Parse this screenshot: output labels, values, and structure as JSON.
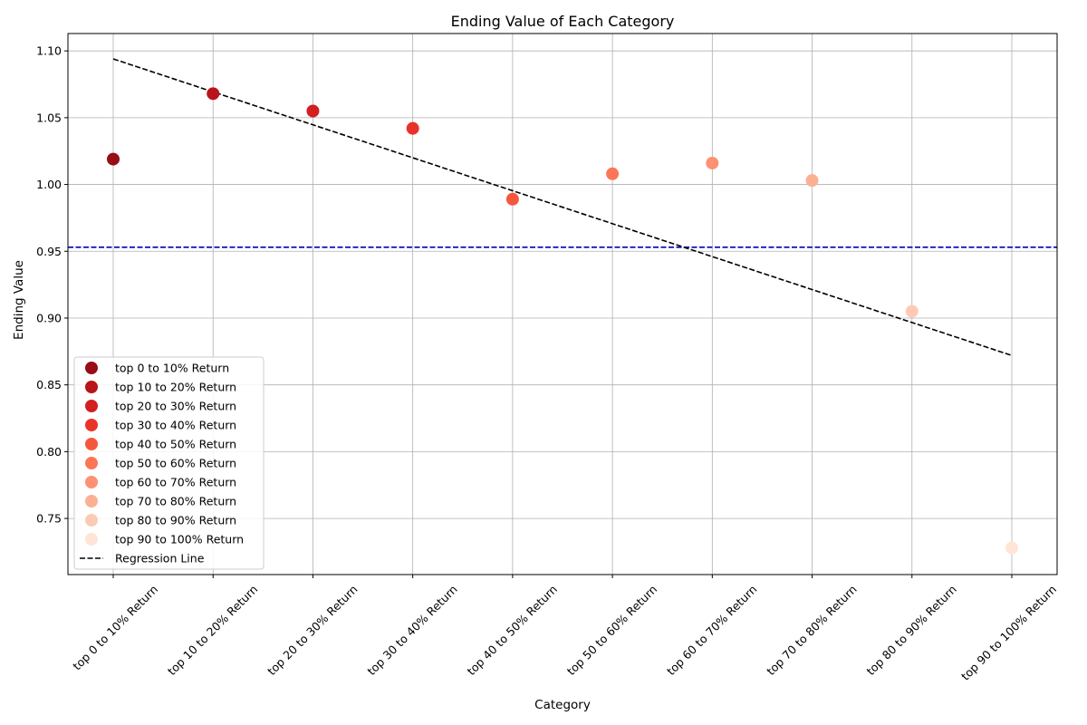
{
  "chart_data": {
    "type": "scatter",
    "title": "Ending Value of Each Category",
    "xlabel": "Category",
    "ylabel": "Ending Value",
    "ylim": [
      0.708,
      1.113
    ],
    "yticks": [
      0.75,
      0.8,
      0.85,
      0.9,
      0.95,
      1.0,
      1.05,
      1.1
    ],
    "ytick_labels": [
      "0.75",
      "0.80",
      "0.85",
      "0.90",
      "0.95",
      "1.00",
      "1.05",
      "1.10"
    ],
    "grid": true,
    "legend_position": "lower-left",
    "categories": [
      "top 0 to 10% Return",
      "top 10 to 20% Return",
      "top 20 to 30% Return",
      "top 30 to 40% Return",
      "top 40 to 50% Return",
      "top 50 to 60% Return",
      "top 60 to 70% Return",
      "top 70 to 80% Return",
      "top 80 to 90% Return",
      "top 90 to 100% Return"
    ],
    "series": [
      {
        "name": "top 0 to 10% Return",
        "value": 1.019,
        "color": "#990d16"
      },
      {
        "name": "top 10 to 20% Return",
        "value": 1.068,
        "color": "#b81419"
      },
      {
        "name": "top 20 to 30% Return",
        "value": 1.055,
        "color": "#d21f20"
      },
      {
        "name": "top 30 to 40% Return",
        "value": 1.042,
        "color": "#e93329"
      },
      {
        "name": "top 40 to 50% Return",
        "value": 0.989,
        "color": "#f5573d"
      },
      {
        "name": "top 50 to 60% Return",
        "value": 1.008,
        "color": "#fb7656"
      },
      {
        "name": "top 60 to 70% Return",
        "value": 1.016,
        "color": "#fc9271"
      },
      {
        "name": "top 70 to 80% Return",
        "value": 1.003,
        "color": "#fcb093"
      },
      {
        "name": "top 80 to 90% Return",
        "value": 0.905,
        "color": "#fdcbb5"
      },
      {
        "name": "top 90 to 100% Return",
        "value": 0.728,
        "color": "#fee5d8"
      }
    ],
    "regression_line": {
      "name": "Regression Line",
      "start": 1.094,
      "end": 0.872,
      "color": "#000000",
      "style": "dashed"
    },
    "reference_line": {
      "value": 0.953,
      "color": "#0000bb",
      "style": "dashed"
    }
  }
}
